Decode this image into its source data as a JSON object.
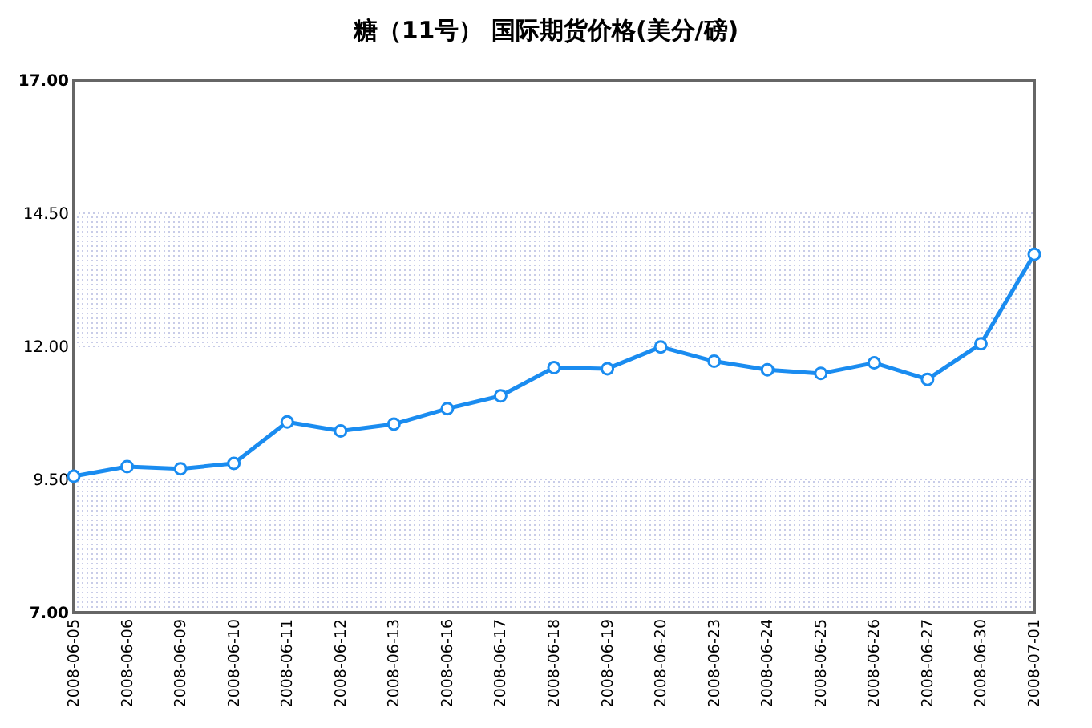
{
  "chart_data": {
    "type": "line",
    "title": "糖（11号） 国际期货价格(美分/磅)",
    "categories": [
      "2008-06-05",
      "2008-06-06",
      "2008-06-09",
      "2008-06-10",
      "2008-06-11",
      "2008-06-12",
      "2008-06-13",
      "2008-06-16",
      "2008-06-17",
      "2008-06-18",
      "2008-06-19",
      "2008-06-20",
      "2008-06-23",
      "2008-06-24",
      "2008-06-25",
      "2008-06-26",
      "2008-06-27",
      "2008-06-30",
      "2008-07-01"
    ],
    "series": [
      {
        "color": "#1a8cf0",
        "values": [
          9.56,
          9.74,
          9.7,
          9.8,
          10.58,
          10.41,
          10.54,
          10.83,
          11.07,
          11.6,
          11.58,
          11.99,
          11.72,
          11.56,
          11.49,
          11.69,
          11.38,
          12.05,
          13.73
        ]
      }
    ],
    "ylim": [
      7,
      17
    ],
    "yticks": [
      {
        "value": 7,
        "label": "7.00"
      },
      {
        "value": 9.5,
        "label": "9.50"
      },
      {
        "value": 12,
        "label": "12.00"
      },
      {
        "value": 14.5,
        "label": "14.50"
      },
      {
        "value": 17,
        "label": "17.00"
      }
    ],
    "bands": [
      {
        "axis": "y",
        "from": 7,
        "to": 9.5
      },
      {
        "axis": "y",
        "from": 12,
        "to": 14.5
      }
    ],
    "grid": "y",
    "marker": "circle"
  }
}
